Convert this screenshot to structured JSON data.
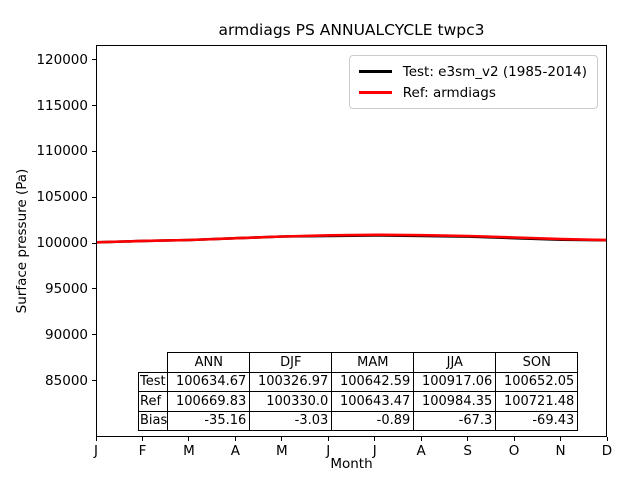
{
  "chart_data": {
    "type": "line",
    "title": "armdiags PS ANNUALCYCLE twpc3",
    "xlabel": "Month",
    "ylabel": "Surface pressure (Pa)",
    "x_tick_labels": [
      "J",
      "F",
      "M",
      "A",
      "M",
      "J",
      "J",
      "A",
      "S",
      "O",
      "N",
      "D"
    ],
    "y_ticks": [
      120000,
      115000,
      110000,
      105000,
      100000,
      95000,
      90000,
      85000
    ],
    "ylim": [
      78800,
      121600
    ],
    "grid": false,
    "legend_position": "upper right",
    "series": [
      {
        "name": "Test: e3sm_v2 (1985-2014)",
        "color": "#000000",
        "values": [
          100200,
          100350,
          100450,
          100650,
          100830,
          100900,
          100950,
          100900,
          100820,
          100650,
          100480,
          100430
        ]
      },
      {
        "name": "Ref: armdiags",
        "color": "#ff0000",
        "values": [
          100200,
          100350,
          100450,
          100650,
          100830,
          100960,
          101020,
          100970,
          100890,
          100720,
          100550,
          100440
        ]
      }
    ],
    "table": {
      "columns": [
        "ANN",
        "DJF",
        "MAM",
        "JJA",
        "SON"
      ],
      "rows": [
        {
          "label": "Test",
          "values": [
            "100634.67",
            "100326.97",
            "100642.59",
            "100917.06",
            "100652.05"
          ]
        },
        {
          "label": "Ref",
          "values": [
            "100669.83",
            "100330.0",
            "100643.47",
            "100984.35",
            "100721.48"
          ]
        },
        {
          "label": "Bias",
          "values": [
            "-35.16",
            "-3.03",
            "-0.89",
            "-67.3",
            "-69.43"
          ]
        }
      ]
    }
  }
}
